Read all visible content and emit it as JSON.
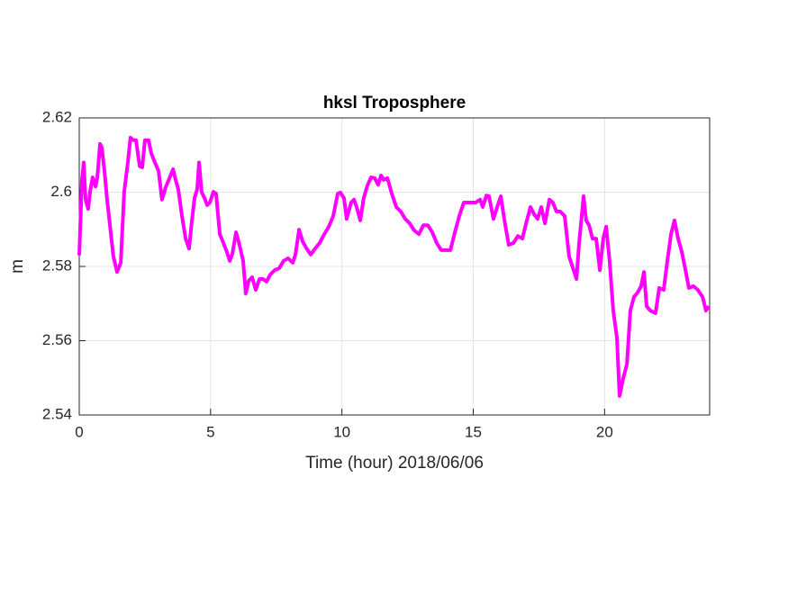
{
  "chart_data": {
    "type": "line",
    "title": "hksl Troposphere",
    "xlabel": "Time (hour)  2018/06/06",
    "ylabel": "m",
    "x": [
      0,
      0.1,
      0.17,
      0.24,
      0.34,
      0.41,
      0.51,
      0.62,
      0.69,
      0.79,
      0.86,
      0.96,
      1.06,
      1.17,
      1.3,
      1.44,
      1.58,
      1.71,
      1.85,
      1.95,
      2.06,
      2.16,
      2.3,
      2.4,
      2.5,
      2.64,
      2.74,
      2.88,
      3.02,
      3.15,
      3.29,
      3.43,
      3.57,
      3.67,
      3.77,
      3.91,
      4.05,
      4.18,
      4.29,
      4.39,
      4.49,
      4.56,
      4.66,
      4.77,
      4.87,
      4.97,
      5.11,
      5.21,
      5.35,
      5.49,
      5.62,
      5.73,
      5.83,
      5.97,
      6.1,
      6.24,
      6.34,
      6.45,
      6.58,
      6.72,
      6.86,
      7,
      7.13,
      7.27,
      7.44,
      7.61,
      7.78,
      7.95,
      8.13,
      8.23,
      8.37,
      8.5,
      8.64,
      8.81,
      8.98,
      9.15,
      9.33,
      9.5,
      9.67,
      9.84,
      9.94,
      10.08,
      10.18,
      10.35,
      10.46,
      10.56,
      10.7,
      10.83,
      10.97,
      11.11,
      11.25,
      11.38,
      11.49,
      11.59,
      11.73,
      11.9,
      12.07,
      12.24,
      12.41,
      12.58,
      12.75,
      12.93,
      13.1,
      13.27,
      13.44,
      13.61,
      13.78,
      13.95,
      14.13,
      14.3,
      14.47,
      14.64,
      14.81,
      15.09,
      15.26,
      15.36,
      15.5,
      15.6,
      15.77,
      15.91,
      16.05,
      16.18,
      16.35,
      16.53,
      16.7,
      16.87,
      17.04,
      17.18,
      17.32,
      17.45,
      17.59,
      17.73,
      17.9,
      18.03,
      18.17,
      18.31,
      18.48,
      18.65,
      18.82,
      18.93,
      19.03,
      19.13,
      19.2,
      19.3,
      19.41,
      19.54,
      19.68,
      19.82,
      19.95,
      20.06,
      20.19,
      20.33,
      20.47,
      20.57,
      20.71,
      20.85,
      20.98,
      21.12,
      21.26,
      21.39,
      21.5,
      21.6,
      21.74,
      21.94,
      22.08,
      22.25,
      22.39,
      22.53,
      22.66,
      22.8,
      22.94,
      23.08,
      23.21,
      23.38,
      23.55,
      23.73,
      23.86,
      23.97
    ],
    "values": [
      2.583,
      2.603,
      2.608,
      2.598,
      2.5955,
      2.6,
      2.604,
      2.6015,
      2.604,
      2.613,
      2.612,
      2.6057,
      2.598,
      2.591,
      2.5827,
      2.5785,
      2.581,
      2.6,
      2.608,
      2.6147,
      2.614,
      2.614,
      2.607,
      2.6067,
      2.614,
      2.614,
      2.6105,
      2.608,
      2.6057,
      2.598,
      2.6013,
      2.6037,
      2.6062,
      2.6033,
      2.6008,
      2.5936,
      2.5875,
      2.5848,
      2.5924,
      2.5984,
      2.6008,
      2.608,
      2.6,
      2.5984,
      2.5965,
      2.5972,
      2.6001,
      2.5996,
      2.5887,
      2.5863,
      2.5839,
      2.5815,
      2.5834,
      2.5892,
      2.5858,
      2.5815,
      2.5727,
      2.5761,
      2.5771,
      2.5737,
      2.5766,
      2.5766,
      2.5759,
      2.5778,
      2.579,
      2.5795,
      2.5815,
      2.5822,
      2.581,
      2.5832,
      2.5899,
      2.5868,
      2.585,
      2.5832,
      2.5848,
      2.5863,
      2.5887,
      2.5907,
      2.5936,
      2.5996,
      2.5999,
      2.5984,
      2.5928,
      2.5972,
      2.598,
      2.596,
      2.5924,
      2.5984,
      2.6018,
      2.604,
      2.6038,
      2.602,
      2.6045,
      2.6033,
      2.6038,
      2.5996,
      2.596,
      2.5948,
      2.5928,
      2.5916,
      2.5897,
      2.5887,
      2.5911,
      2.5911,
      2.5892,
      2.5863,
      2.5844,
      2.5844,
      2.5844,
      2.5892,
      2.5936,
      2.5972,
      2.5972,
      2.5972,
      2.598,
      2.596,
      2.5991,
      2.5989,
      2.5928,
      2.596,
      2.5989,
      2.5928,
      2.5858,
      2.5863,
      2.5882,
      2.5875,
      2.5924,
      2.596,
      2.594,
      2.5928,
      2.596,
      2.5916,
      2.598,
      2.5972,
      2.5948,
      2.5948,
      2.5936,
      2.5827,
      2.579,
      2.5766,
      2.5863,
      2.5936,
      2.5989,
      2.5924,
      2.5911,
      2.5875,
      2.5875,
      2.579,
      2.5875,
      2.5907,
      2.5815,
      2.5681,
      2.5608,
      2.5451,
      2.5499,
      2.5536,
      2.5681,
      2.5718,
      2.573,
      2.5747,
      2.5785,
      2.5693,
      2.5681,
      2.5674,
      2.5742,
      2.5737,
      2.5815,
      2.5887,
      2.5924,
      2.5875,
      2.5839,
      2.579,
      2.5742,
      2.5747,
      2.5737,
      2.5718,
      2.5681,
      2.5693
    ],
    "color": "#ff00ff",
    "xlim": [
      0,
      24
    ],
    "xticks": [
      0,
      5,
      10,
      15,
      20
    ],
    "ylim": [
      2.54,
      2.62
    ],
    "yticks": [
      2.54,
      2.56,
      2.58,
      2.6,
      2.62
    ],
    "grid": true
  }
}
